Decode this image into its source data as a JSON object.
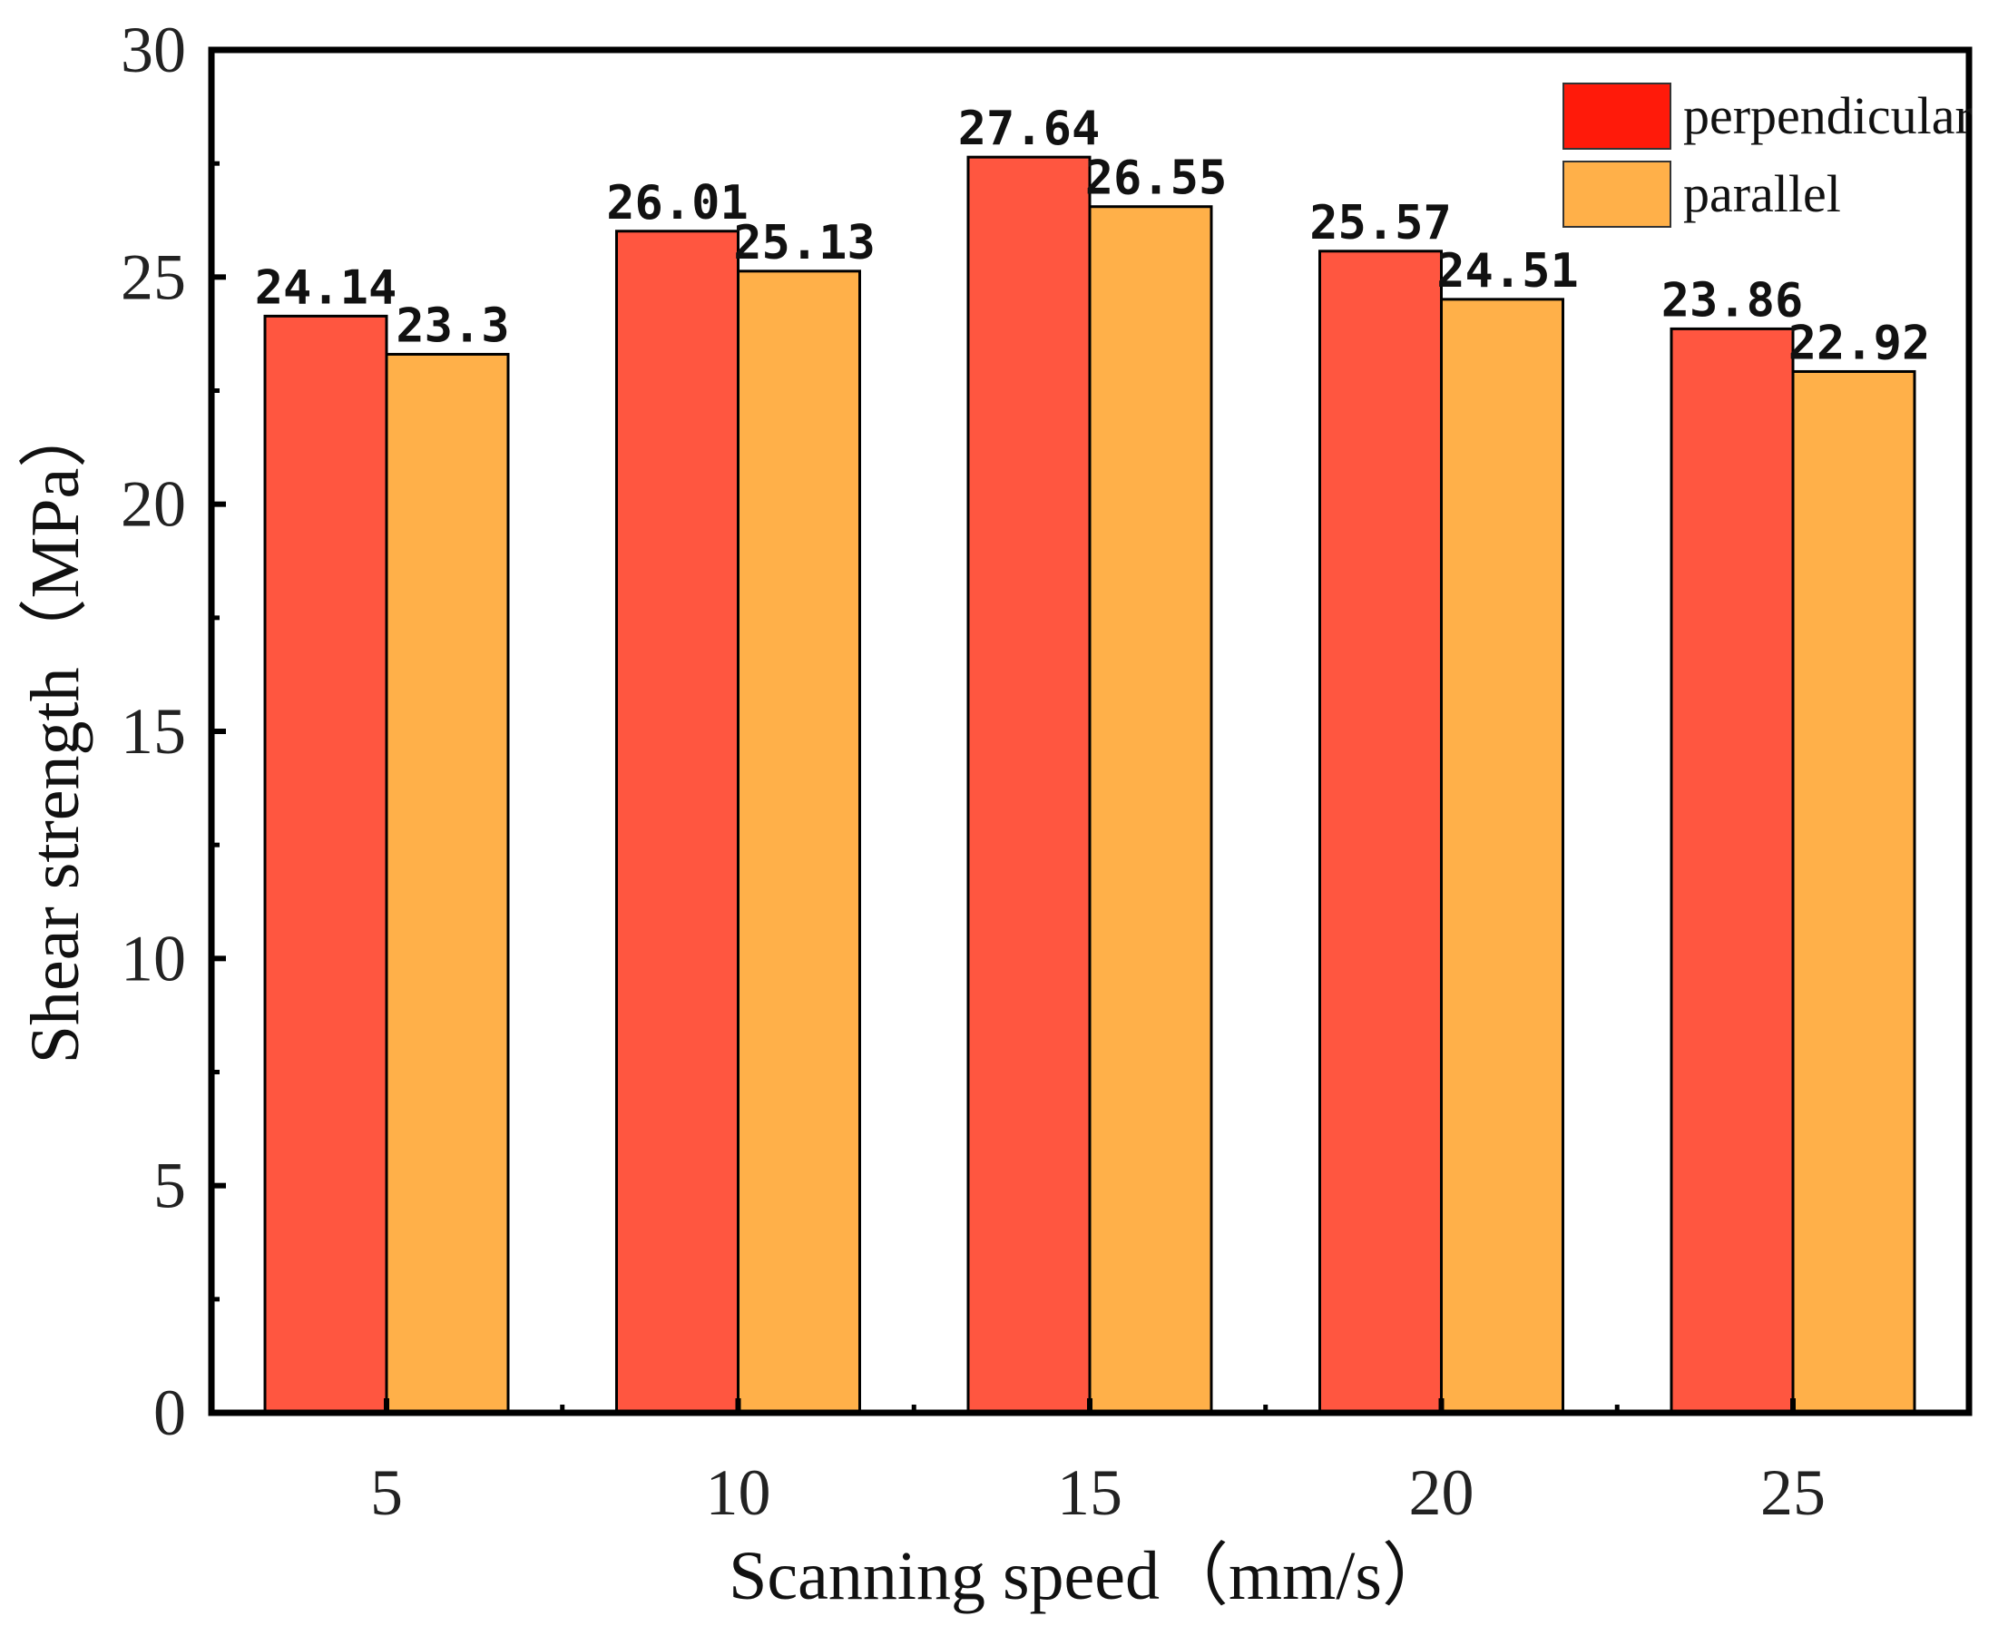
{
  "chart_data": {
    "type": "bar",
    "title": "",
    "xlabel": "Scanning speed（mm/s）",
    "ylabel": "Shear strength（MPa）",
    "categories": [
      "5",
      "10",
      "15",
      "20",
      "25"
    ],
    "ylim": [
      0,
      30
    ],
    "yticks": [
      0,
      5,
      10,
      15,
      20,
      25,
      30
    ],
    "grid": false,
    "legend_position": "top-right",
    "series": [
      {
        "name": "perpendicular",
        "color": "#ff5640",
        "legend_color": "#ff1a0a",
        "values": [
          24.14,
          26.01,
          27.64,
          25.57,
          23.86
        ],
        "labels": [
          "24.14",
          "26.01",
          "27.64",
          "25.57",
          "23.86"
        ]
      },
      {
        "name": "parallel",
        "color": "#ffb049",
        "legend_color": "#ffb049",
        "values": [
          23.3,
          25.13,
          26.55,
          24.51,
          22.92
        ],
        "labels": [
          "23.3",
          "25.13",
          "26.55",
          "24.51",
          "22.92"
        ]
      }
    ]
  }
}
